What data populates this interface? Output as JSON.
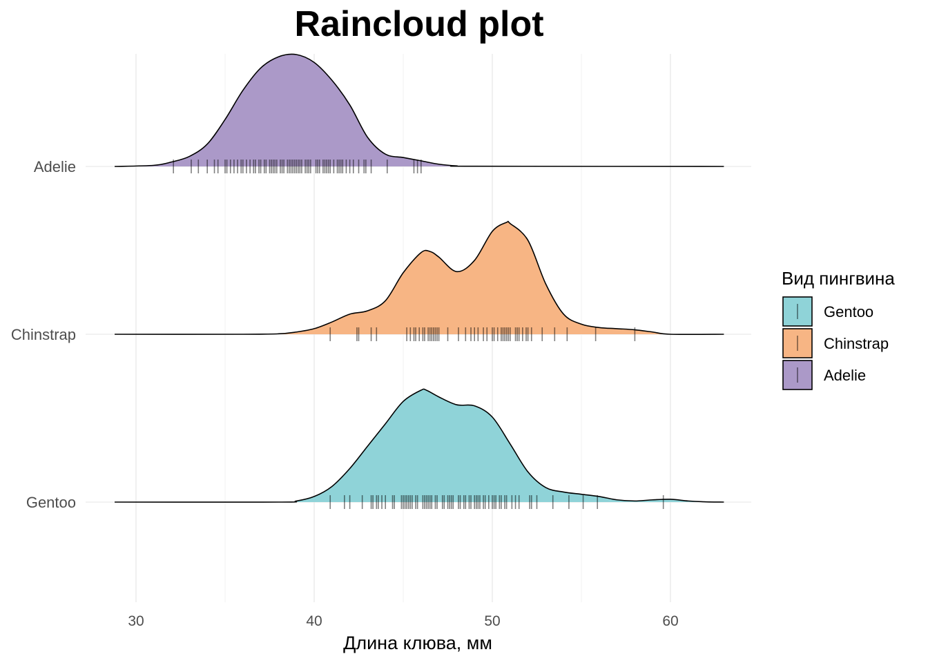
{
  "chart_data": {
    "type": "raincloud",
    "title": "Raincloud plot",
    "xlabel": "Длина клюва, мм",
    "ylabel": "",
    "xlim": [
      27,
      65
    ],
    "x_ticks": [
      30,
      40,
      50,
      60
    ],
    "x_minor_ticks": [
      35,
      45,
      55
    ],
    "grid": true,
    "legend": {
      "title": "Вид пингвина",
      "position": "right",
      "entries": [
        {
          "label": "Gentoo",
          "color": "#8fd3d8"
        },
        {
          "label": "Chinstrap",
          "color": "#f7b584"
        },
        {
          "label": "Adelie",
          "color": "#ab99c8"
        }
      ]
    },
    "categories": [
      "Adelie",
      "Chinstrap",
      "Gentoo"
    ],
    "series": [
      {
        "name": "Adelie",
        "color": "#ab99c8",
        "density": [
          [
            28.8,
            0.0
          ],
          [
            31,
            0.01
          ],
          [
            32,
            0.04
          ],
          [
            33,
            0.09
          ],
          [
            34,
            0.2
          ],
          [
            35,
            0.42
          ],
          [
            36,
            0.68
          ],
          [
            37,
            0.88
          ],
          [
            38,
            0.98
          ],
          [
            39,
            1.0
          ],
          [
            40,
            0.93
          ],
          [
            41,
            0.77
          ],
          [
            42,
            0.55
          ],
          [
            43,
            0.26
          ],
          [
            44,
            0.11
          ],
          [
            45,
            0.08
          ],
          [
            46,
            0.05
          ],
          [
            47,
            0.02
          ],
          [
            48,
            0.005
          ],
          [
            49,
            0.002
          ],
          [
            63,
            0.0
          ]
        ],
        "observations": [
          32.1,
          33.1,
          33.5,
          34.0,
          34.4,
          34.6,
          35.0,
          35.1,
          35.3,
          35.5,
          35.7,
          35.9,
          36.0,
          36.2,
          36.4,
          36.6,
          36.7,
          36.9,
          37.0,
          37.2,
          37.3,
          37.5,
          37.6,
          37.7,
          37.8,
          37.9,
          38.1,
          38.2,
          38.3,
          38.5,
          38.6,
          38.7,
          38.8,
          38.9,
          39.0,
          39.1,
          39.2,
          39.3,
          39.5,
          39.6,
          39.7,
          39.8,
          40.1,
          40.2,
          40.3,
          40.5,
          40.6,
          40.7,
          40.8,
          40.9,
          41.1,
          41.3,
          41.4,
          41.5,
          41.6,
          41.8,
          42.0,
          42.2,
          42.5,
          42.8,
          42.9,
          43.2,
          44.1,
          45.6,
          45.8,
          46.0
        ]
      },
      {
        "name": "Chinstrap",
        "color": "#f7b584",
        "density": [
          [
            28.8,
            0.0
          ],
          [
            36,
            0.0
          ],
          [
            38,
            0.004
          ],
          [
            39,
            0.02
          ],
          [
            40,
            0.05
          ],
          [
            41,
            0.11
          ],
          [
            42,
            0.18
          ],
          [
            43,
            0.21
          ],
          [
            44,
            0.3
          ],
          [
            45,
            0.55
          ],
          [
            46,
            0.73
          ],
          [
            46.5,
            0.74
          ],
          [
            47,
            0.69
          ],
          [
            48,
            0.56
          ],
          [
            49,
            0.66
          ],
          [
            50,
            0.92
          ],
          [
            50.8,
            1.0
          ],
          [
            51,
            0.99
          ],
          [
            52,
            0.84
          ],
          [
            53,
            0.45
          ],
          [
            54,
            0.18
          ],
          [
            55,
            0.09
          ],
          [
            56,
            0.06
          ],
          [
            57,
            0.05
          ],
          [
            58,
            0.04
          ],
          [
            59,
            0.02
          ],
          [
            60,
            0.0
          ],
          [
            63,
            0.0
          ]
        ],
        "observations": [
          40.9,
          42.4,
          42.5,
          43.2,
          43.5,
          45.2,
          45.4,
          45.6,
          45.7,
          45.9,
          46.1,
          46.2,
          46.4,
          46.5,
          46.6,
          46.7,
          46.8,
          46.9,
          47.0,
          47.5,
          48.1,
          48.5,
          48.8,
          49.0,
          49.2,
          49.5,
          49.7,
          50.0,
          50.1,
          50.3,
          50.5,
          50.6,
          50.7,
          50.8,
          50.9,
          51.0,
          51.3,
          51.4,
          51.5,
          51.7,
          51.9,
          52.0,
          52.2,
          52.8,
          53.5,
          54.2,
          55.8,
          58.0
        ]
      },
      {
        "name": "Gentoo",
        "color": "#8fd3d8",
        "density": [
          [
            28.8,
            0.0
          ],
          [
            38,
            0.0
          ],
          [
            39,
            0.01
          ],
          [
            40,
            0.05
          ],
          [
            41,
            0.14
          ],
          [
            42,
            0.3
          ],
          [
            43,
            0.5
          ],
          [
            44,
            0.7
          ],
          [
            45,
            0.9
          ],
          [
            46,
            1.0
          ],
          [
            46.3,
            1.0
          ],
          [
            47,
            0.94
          ],
          [
            48,
            0.87
          ],
          [
            49,
            0.86
          ],
          [
            50,
            0.76
          ],
          [
            51,
            0.52
          ],
          [
            52,
            0.27
          ],
          [
            53,
            0.13
          ],
          [
            54,
            0.09
          ],
          [
            55,
            0.07
          ],
          [
            56,
            0.05
          ],
          [
            57,
            0.02
          ],
          [
            58,
            0.01
          ],
          [
            59,
            0.02
          ],
          [
            60,
            0.025
          ],
          [
            61,
            0.01
          ],
          [
            62,
            0.002
          ],
          [
            63,
            0.0
          ]
        ],
        "observations": [
          40.9,
          41.7,
          42.0,
          42.7,
          43.2,
          43.3,
          43.5,
          43.6,
          43.8,
          44.0,
          44.4,
          44.5,
          44.9,
          45.0,
          45.1,
          45.2,
          45.3,
          45.4,
          45.5,
          45.7,
          45.8,
          46.1,
          46.2,
          46.3,
          46.4,
          46.5,
          46.6,
          46.8,
          46.9,
          47.2,
          47.3,
          47.5,
          47.6,
          47.7,
          47.8,
          48.1,
          48.2,
          48.4,
          48.5,
          48.7,
          48.8,
          49.0,
          49.1,
          49.2,
          49.3,
          49.5,
          49.6,
          49.8,
          50.0,
          50.1,
          50.2,
          50.4,
          50.5,
          50.7,
          50.8,
          51.1,
          51.3,
          51.5,
          52.1,
          52.2,
          52.5,
          53.4,
          54.3,
          55.1,
          55.9,
          59.6
        ]
      }
    ]
  }
}
